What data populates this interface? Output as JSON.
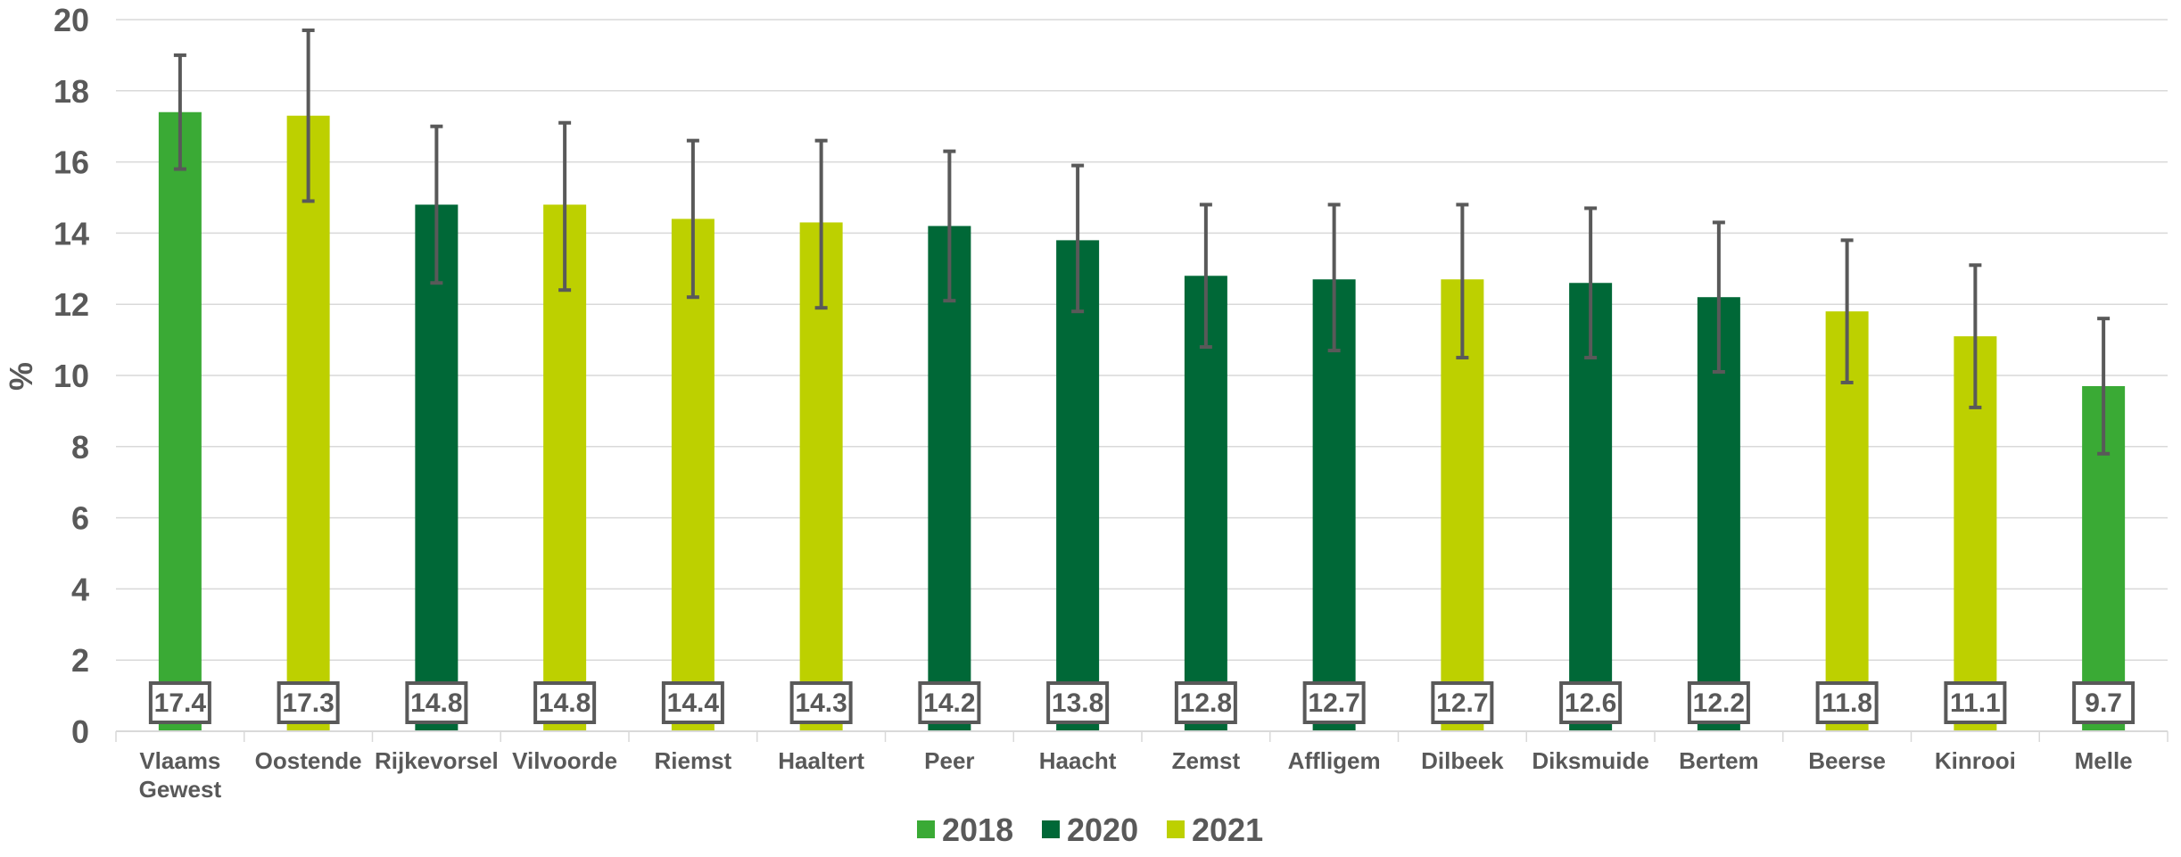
{
  "chart_data": {
    "type": "bar",
    "ylabel": "%",
    "ylim": [
      0,
      20
    ],
    "yticks": [
      0,
      2,
      4,
      6,
      8,
      10,
      12,
      14,
      16,
      18,
      20
    ],
    "grid": true,
    "legend_position": "bottom",
    "colors": {
      "2018": "#3AAA35",
      "2020": "#006837",
      "2021": "#BDD000"
    },
    "legend": [
      "2018",
      "2020",
      "2021"
    ],
    "categories": [
      [
        "Vlaams",
        "Gewest"
      ],
      [
        "Oostende"
      ],
      [
        "Rijkevorsel"
      ],
      [
        "Vilvoorde"
      ],
      [
        "Riemst"
      ],
      [
        "Haaltert"
      ],
      [
        "Peer"
      ],
      [
        "Haacht"
      ],
      [
        "Zemst"
      ],
      [
        "Affligem"
      ],
      [
        "Dilbeek"
      ],
      [
        "Diksmuide"
      ],
      [
        "Bertem"
      ],
      [
        "Beerse"
      ],
      [
        "Kinrooi"
      ],
      [
        "Melle"
      ]
    ],
    "values": [
      17.4,
      17.3,
      14.8,
      14.8,
      14.4,
      14.3,
      14.2,
      13.8,
      12.8,
      12.7,
      12.7,
      12.6,
      12.2,
      11.8,
      11.1,
      9.7
    ],
    "value_labels": [
      "17.4",
      "17.3",
      "14.8",
      "14.8",
      "14.4",
      "14.3",
      "14.2",
      "13.8",
      "12.8",
      "12.7",
      "12.7",
      "12.6",
      "12.2",
      "11.8",
      "11.1",
      "9.7"
    ],
    "error_low": [
      15.8,
      14.9,
      12.6,
      12.4,
      12.2,
      11.9,
      12.1,
      11.8,
      10.8,
      10.7,
      10.5,
      10.5,
      10.1,
      9.8,
      9.1,
      7.8
    ],
    "error_high": [
      19.0,
      19.7,
      17.0,
      17.1,
      16.6,
      16.6,
      16.3,
      15.9,
      14.8,
      14.8,
      14.8,
      14.7,
      14.3,
      13.8,
      13.1,
      11.6
    ],
    "years": [
      "2018",
      "2021",
      "2020",
      "2021",
      "2021",
      "2021",
      "2020",
      "2020",
      "2020",
      "2020",
      "2021",
      "2020",
      "2020",
      "2021",
      "2021",
      "2018"
    ]
  }
}
